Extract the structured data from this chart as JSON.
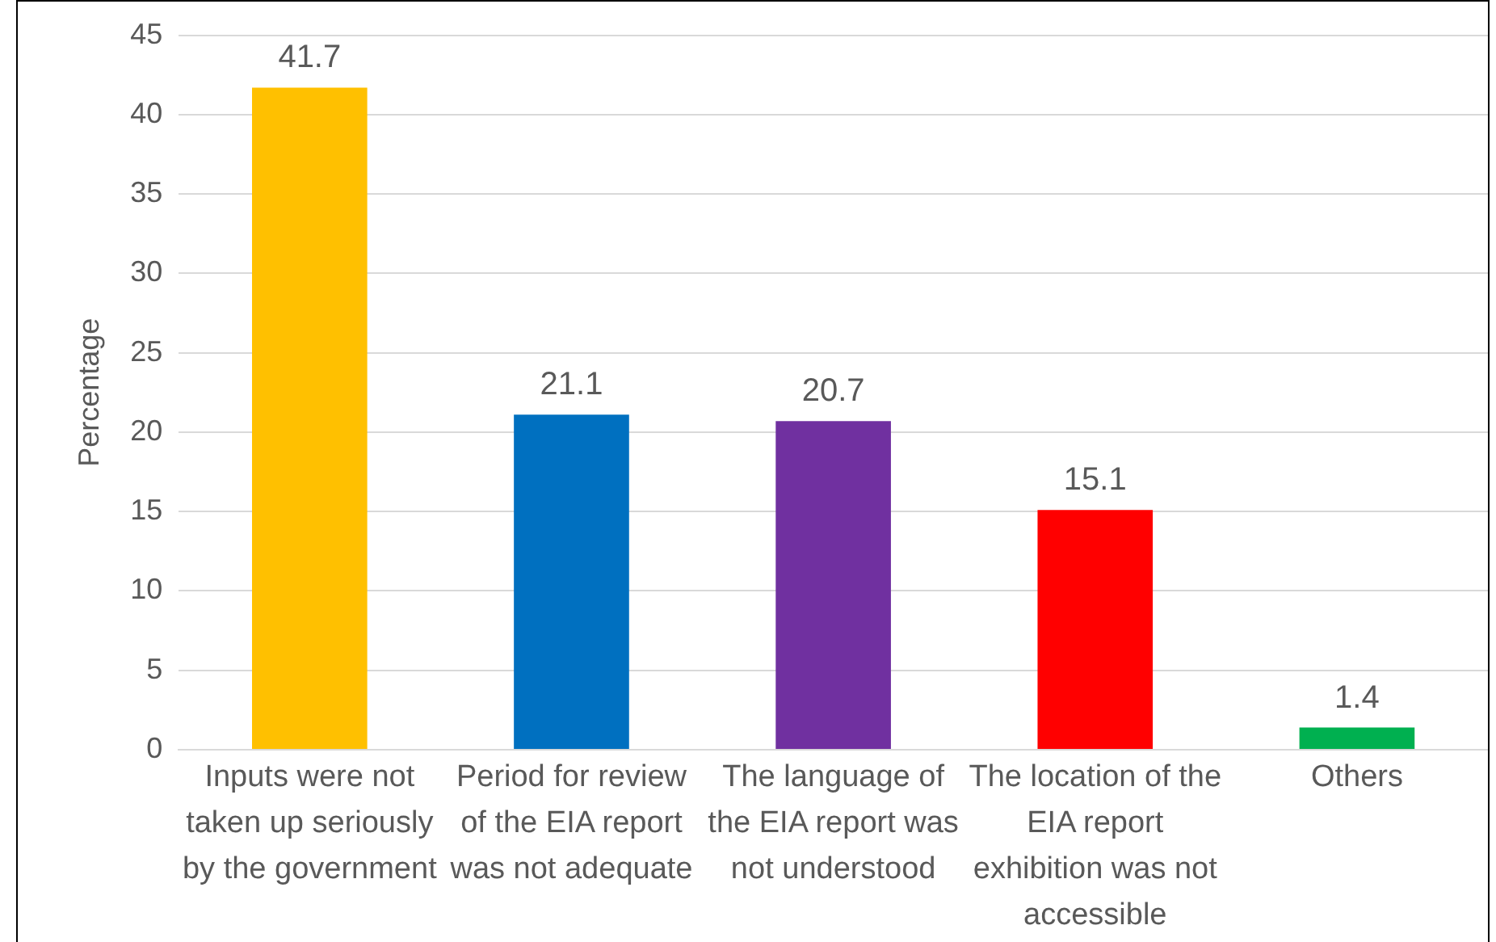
{
  "chart_data": {
    "type": "bar",
    "ylabel": "Percentage",
    "categories": [
      "Inputs were not taken up seriously by the government",
      "Period for review of the EIA report was not adequate",
      "The language of the EIA report was not understood",
      "The location of the EIA report exhibition was not accessible",
      "Others"
    ],
    "values": [
      41.7,
      21.1,
      20.7,
      15.1,
      1.4
    ],
    "colors": [
      "#ffc000",
      "#0070c0",
      "#7030a0",
      "#ff0000",
      "#00b050"
    ],
    "ylim": [
      0,
      45
    ],
    "yticks": [
      0,
      5,
      10,
      15,
      20,
      25,
      30,
      35,
      40,
      45
    ],
    "grid": "y",
    "data_labels": true,
    "legend": false
  }
}
